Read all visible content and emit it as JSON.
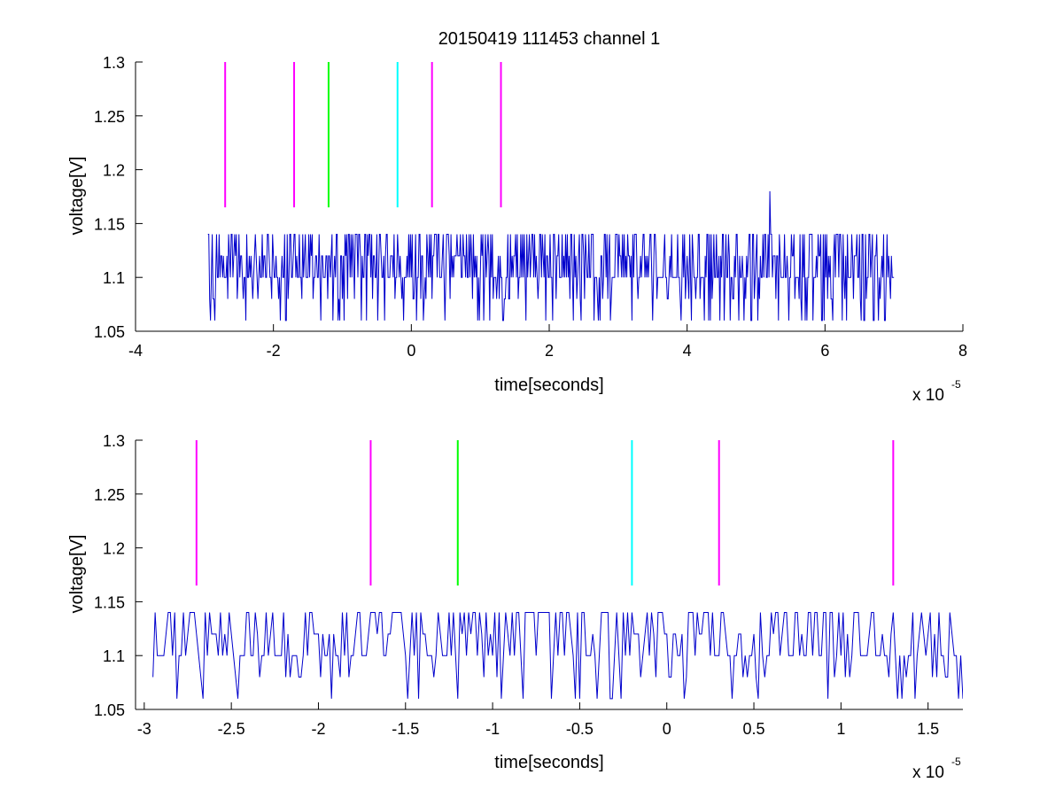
{
  "title": "20150419 111453 channel 1",
  "colors": {
    "signal": "#0000cc",
    "magenta": "#ff00ff",
    "green": "#00ff00",
    "cyan": "#00ffff",
    "axis": "#000000"
  },
  "chart_data": [
    {
      "type": "line",
      "name": "top",
      "title": "20150419 111453 channel 1",
      "xlabel": "time[seconds]",
      "ylabel": "voltage[V]",
      "x_exponent_base": "x 10",
      "x_exponent_power": "-5",
      "x_scale": 1e-05,
      "xlim": [
        -4,
        8
      ],
      "ylim": [
        1.05,
        1.3
      ],
      "x_ticks": [
        -4,
        -2,
        0,
        2,
        4,
        6,
        8
      ],
      "x_tick_labels": [
        "-4",
        "-2",
        "0",
        "2",
        "4",
        "6",
        "8"
      ],
      "y_ticks": [
        1.05,
        1.1,
        1.15,
        1.2,
        1.25,
        1.3
      ],
      "y_tick_labels": [
        "1.05",
        "1.1",
        "1.15",
        "1.2",
        "1.25",
        "1.3"
      ],
      "grid": false,
      "signal": {
        "x_range": [
          -2.95,
          7.0
        ],
        "levels": [
          1.06,
          1.08,
          1.1,
          1.12,
          1.14
        ],
        "baseline": 1.1,
        "spike": {
          "x": 5.2,
          "y": 1.18
        }
      },
      "markers": [
        {
          "x": -2.7,
          "y_range": [
            1.165,
            1.3
          ],
          "color": "magenta"
        },
        {
          "x": -1.7,
          "y_range": [
            1.165,
            1.3
          ],
          "color": "magenta"
        },
        {
          "x": -1.2,
          "y_range": [
            1.165,
            1.3
          ],
          "color": "green"
        },
        {
          "x": -0.2,
          "y_range": [
            1.165,
            1.3
          ],
          "color": "cyan"
        },
        {
          "x": 0.3,
          "y_range": [
            1.165,
            1.3
          ],
          "color": "magenta"
        },
        {
          "x": 1.3,
          "y_range": [
            1.165,
            1.3
          ],
          "color": "magenta"
        }
      ]
    },
    {
      "type": "line",
      "name": "bottom",
      "title": "",
      "xlabel": "time[seconds]",
      "ylabel": "voltage[V]",
      "x_exponent_base": "x 10",
      "x_exponent_power": "-5",
      "x_scale": 1e-05,
      "xlim": [
        -3.05,
        1.7
      ],
      "ylim": [
        1.05,
        1.3
      ],
      "x_ticks": [
        -3,
        -2.5,
        -2,
        -1.5,
        -1,
        -0.5,
        0,
        0.5,
        1,
        1.5
      ],
      "x_tick_labels": [
        "-3",
        "-2.5",
        "-2",
        "-1.5",
        "-1",
        "-0.5",
        "0",
        "0.5",
        "1",
        "1.5"
      ],
      "y_ticks": [
        1.05,
        1.1,
        1.15,
        1.2,
        1.25,
        1.3
      ],
      "y_tick_labels": [
        "1.05",
        "1.1",
        "1.15",
        "1.2",
        "1.25",
        "1.3"
      ],
      "grid": false,
      "signal": {
        "x_range": [
          -2.95,
          1.7
        ],
        "levels": [
          1.06,
          1.08,
          1.1,
          1.12,
          1.14
        ],
        "baseline": 1.1
      },
      "markers": [
        {
          "x": -2.7,
          "y_range": [
            1.165,
            1.3
          ],
          "color": "magenta"
        },
        {
          "x": -1.7,
          "y_range": [
            1.165,
            1.3
          ],
          "color": "magenta"
        },
        {
          "x": -1.2,
          "y_range": [
            1.165,
            1.3
          ],
          "color": "green"
        },
        {
          "x": -0.2,
          "y_range": [
            1.165,
            1.3
          ],
          "color": "cyan"
        },
        {
          "x": 0.3,
          "y_range": [
            1.165,
            1.3
          ],
          "color": "magenta"
        },
        {
          "x": 1.3,
          "y_range": [
            1.165,
            1.3
          ],
          "color": "magenta"
        }
      ]
    }
  ]
}
